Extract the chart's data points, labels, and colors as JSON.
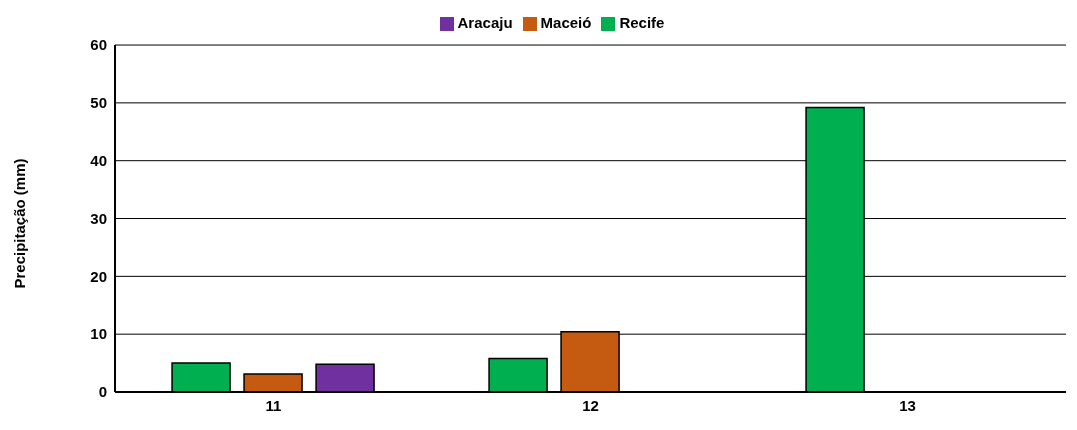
{
  "chart_data": {
    "type": "bar",
    "ylabel": "Precipitação (mm)",
    "categories": [
      "11",
      "12",
      "13"
    ],
    "series": [
      {
        "name": "Recife",
        "color": "#00b050",
        "values": [
          5.0,
          5.8,
          49.2
        ]
      },
      {
        "name": "Maceió",
        "color": "#c55a11",
        "values": [
          3.1,
          10.4,
          null
        ]
      },
      {
        "name": "Aracaju",
        "color": "#7030a0",
        "values": [
          4.8,
          null,
          null
        ]
      }
    ],
    "ylim": [
      0,
      60
    ],
    "yticks": [
      0,
      10,
      20,
      30,
      40,
      50,
      60
    ],
    "grid": "y",
    "legend": "top"
  }
}
